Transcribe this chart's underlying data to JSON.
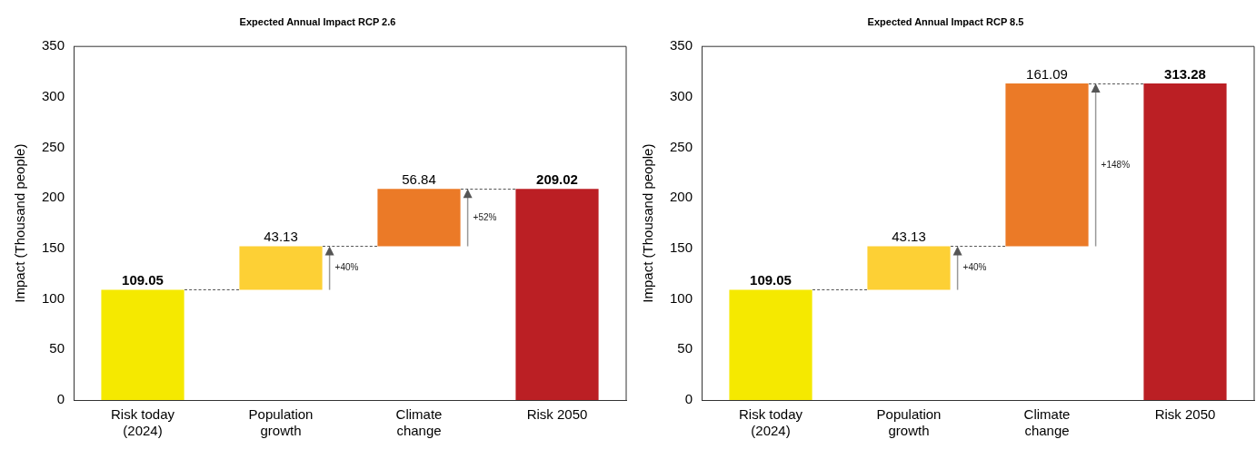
{
  "chart_data": [
    {
      "type": "bar",
      "title": "Expected Annual Impact RCP 2.6",
      "ylabel": "Impact (Thousand people)",
      "categories": [
        "Risk today (2024)",
        "Population growth",
        "Climate change",
        "Risk 2050"
      ],
      "values": [
        109.05,
        43.13,
        56.84,
        209.02
      ],
      "base": [
        0,
        109.05,
        152.18,
        0
      ],
      "colors": [
        "#f5e900",
        "#fdd035",
        "#eb7a27",
        "#bb1f24"
      ],
      "ylim": [
        0,
        350
      ],
      "yticks": [
        0,
        50,
        100,
        150,
        200,
        250,
        300,
        350
      ],
      "grid": false,
      "legend": false,
      "data_labels": true,
      "annotations": [
        "+40%",
        "+52%"
      ]
    },
    {
      "type": "bar",
      "title": "Expected Annual Impact RCP 8.5",
      "ylabel": "Impact (Thousand people)",
      "categories": [
        "Risk today (2024)",
        "Population growth",
        "Climate change",
        "Risk 2050"
      ],
      "values": [
        109.05,
        43.13,
        161.09,
        313.28
      ],
      "base": [
        0,
        109.05,
        152.18,
        0
      ],
      "colors": [
        "#f5e900",
        "#fdd035",
        "#eb7a27",
        "#bb1f24"
      ],
      "ylim": [
        0,
        350
      ],
      "yticks": [
        0,
        50,
        100,
        150,
        200,
        250,
        300,
        350
      ],
      "grid": false,
      "legend": false,
      "data_labels": true,
      "annotations": [
        "+40%",
        "+148%"
      ]
    }
  ]
}
